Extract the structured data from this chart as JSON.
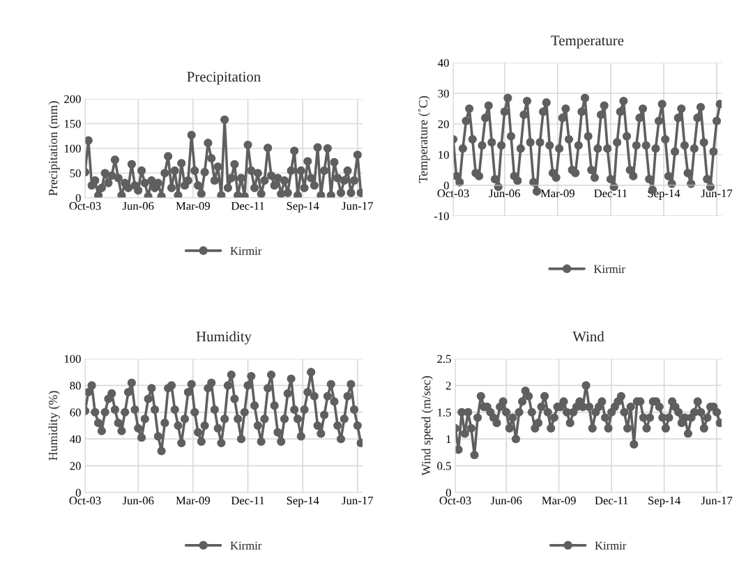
{
  "chart_data": [
    {
      "type": "line",
      "title": "Precipitation",
      "ylabel": "Precipitation (mm)",
      "grid": true,
      "legend": "bottom",
      "marker": "circle",
      "line_style": "solid",
      "x": [
        "2003-10",
        "2003-12",
        "2004-02",
        "2004-04",
        "2004-06",
        "2004-08",
        "2004-10",
        "2004-12",
        "2005-02",
        "2005-04",
        "2005-06",
        "2005-08",
        "2005-10",
        "2005-12",
        "2006-02",
        "2006-04",
        "2006-06",
        "2006-08",
        "2006-10",
        "2006-12",
        "2007-02",
        "2007-04",
        "2007-06",
        "2007-08",
        "2007-10",
        "2007-12",
        "2008-02",
        "2008-04",
        "2008-06",
        "2008-08",
        "2008-10",
        "2008-12",
        "2009-02",
        "2009-04",
        "2009-06",
        "2009-08",
        "2009-10",
        "2009-12",
        "2010-02",
        "2010-04",
        "2010-06",
        "2010-08",
        "2010-10",
        "2010-12",
        "2011-02",
        "2011-04",
        "2011-06",
        "2011-08",
        "2011-10",
        "2011-12",
        "2012-02",
        "2012-04",
        "2012-06",
        "2012-08",
        "2012-10",
        "2012-12",
        "2013-02",
        "2013-04",
        "2013-06",
        "2013-08",
        "2013-10",
        "2013-12",
        "2014-02",
        "2014-04",
        "2014-06",
        "2014-08",
        "2014-10",
        "2014-12",
        "2015-02",
        "2015-04",
        "2015-06",
        "2015-08",
        "2015-10",
        "2015-12",
        "2016-02",
        "2016-04",
        "2016-06",
        "2016-08",
        "2016-10",
        "2016-12",
        "2017-02",
        "2017-04",
        "2017-06",
        "2017-08"
      ],
      "xlim": [
        "2003-10",
        "2017-09"
      ],
      "xticks": [
        {
          "value": "2003-10",
          "label": "Oct-03"
        },
        {
          "value": "2006-06",
          "label": "Jun-06"
        },
        {
          "value": "2009-03",
          "label": "Mar-09"
        },
        {
          "value": "2011-12",
          "label": "Dec-11"
        },
        {
          "value": "2014-09",
          "label": "Sep-14"
        },
        {
          "value": "2017-06",
          "label": "Jun-17"
        }
      ],
      "ylim": [
        0,
        200
      ],
      "yticks": [
        0,
        50,
        100,
        150,
        200
      ],
      "series": [
        {
          "name": "Kirmir",
          "color": "#5f5f5f",
          "values": [
            52,
            116,
            25,
            35,
            5,
            20,
            50,
            30,
            45,
            77,
            40,
            5,
            30,
            20,
            68,
            25,
            15,
            55,
            30,
            3,
            35,
            20,
            30,
            3,
            50,
            84,
            20,
            55,
            5,
            70,
            25,
            35,
            127,
            55,
            25,
            8,
            52,
            111,
            80,
            35,
            63,
            5,
            158,
            20,
            40,
            68,
            5,
            40,
            3,
            107,
            55,
            20,
            50,
            8,
            35,
            101,
            45,
            25,
            40,
            8,
            35,
            10,
            55,
            95,
            5,
            55,
            20,
            74,
            40,
            25,
            102,
            5,
            55,
            100,
            5,
            72,
            40,
            10,
            35,
            55,
            10,
            35,
            87,
            10
          ]
        }
      ]
    },
    {
      "type": "line",
      "title": "Temperature",
      "ylabel": "Temperature (˚C)",
      "grid": true,
      "legend": "bottom",
      "marker": "circle",
      "line_style": "solid",
      "x": [
        "2003-10",
        "2003-12",
        "2004-02",
        "2004-04",
        "2004-06",
        "2004-08",
        "2004-10",
        "2004-12",
        "2005-02",
        "2005-04",
        "2005-06",
        "2005-08",
        "2005-10",
        "2005-12",
        "2006-02",
        "2006-04",
        "2006-06",
        "2006-08",
        "2006-10",
        "2006-12",
        "2007-02",
        "2007-04",
        "2007-06",
        "2007-08",
        "2007-10",
        "2007-12",
        "2008-02",
        "2008-04",
        "2008-06",
        "2008-08",
        "2008-10",
        "2008-12",
        "2009-02",
        "2009-04",
        "2009-06",
        "2009-08",
        "2009-10",
        "2009-12",
        "2010-02",
        "2010-04",
        "2010-06",
        "2010-08",
        "2010-10",
        "2010-12",
        "2011-02",
        "2011-04",
        "2011-06",
        "2011-08",
        "2011-10",
        "2011-12",
        "2012-02",
        "2012-04",
        "2012-06",
        "2012-08",
        "2012-10",
        "2012-12",
        "2013-02",
        "2013-04",
        "2013-06",
        "2013-08",
        "2013-10",
        "2013-12",
        "2014-02",
        "2014-04",
        "2014-06",
        "2014-08",
        "2014-10",
        "2014-12",
        "2015-02",
        "2015-04",
        "2015-06",
        "2015-08",
        "2015-10",
        "2015-12",
        "2016-02",
        "2016-04",
        "2016-06",
        "2016-08",
        "2016-10",
        "2016-12",
        "2017-02",
        "2017-04",
        "2017-06",
        "2017-08"
      ],
      "xlim": [
        "2003-10",
        "2017-09"
      ],
      "xticks": [
        {
          "value": "2003-10",
          "label": "Oct-03"
        },
        {
          "value": "2006-06",
          "label": "Jun-06"
        },
        {
          "value": "2009-03",
          "label": "Mar-09"
        },
        {
          "value": "2011-12",
          "label": "Dec-11"
        },
        {
          "value": "2014-09",
          "label": "Sep-14"
        },
        {
          "value": "2017-06",
          "label": "Jun-17"
        }
      ],
      "ylim": [
        -10,
        40
      ],
      "yticks": [
        -10,
        0,
        10,
        20,
        30,
        40
      ],
      "series": [
        {
          "name": "Kirmir",
          "color": "#5f5f5f",
          "values": [
            15,
            3,
            1,
            12,
            21,
            25,
            15,
            4,
            3,
            13,
            22,
            26,
            14,
            2,
            -0.5,
            13,
            24,
            28.5,
            16,
            3,
            1.5,
            12,
            23,
            27.5,
            14,
            1,
            -2,
            14,
            24,
            27,
            13,
            4,
            2.5,
            12,
            22,
            25,
            15,
            5,
            4,
            13,
            24,
            28.5,
            16,
            5,
            2.5,
            12,
            23,
            26,
            12,
            2,
            -0.5,
            14,
            24,
            27.5,
            16,
            5,
            3,
            13,
            22,
            25,
            13,
            2,
            -1.5,
            12,
            21,
            26.5,
            15,
            3,
            0.5,
            11,
            22,
            25,
            13,
            4,
            0.5,
            12,
            22,
            25.5,
            14,
            2,
            -0.5,
            11,
            21,
            26.5
          ]
        }
      ]
    },
    {
      "type": "line",
      "title": "Humidity",
      "ylabel": "Humidity (%)",
      "grid": true,
      "legend": "bottom",
      "marker": "circle",
      "line_style": "solid",
      "x": [
        "2003-10",
        "2003-12",
        "2004-02",
        "2004-04",
        "2004-06",
        "2004-08",
        "2004-10",
        "2004-12",
        "2005-02",
        "2005-04",
        "2005-06",
        "2005-08",
        "2005-10",
        "2005-12",
        "2006-02",
        "2006-04",
        "2006-06",
        "2006-08",
        "2006-10",
        "2006-12",
        "2007-02",
        "2007-04",
        "2007-06",
        "2007-08",
        "2007-10",
        "2007-12",
        "2008-02",
        "2008-04",
        "2008-06",
        "2008-08",
        "2008-10",
        "2008-12",
        "2009-02",
        "2009-04",
        "2009-06",
        "2009-08",
        "2009-10",
        "2009-12",
        "2010-02",
        "2010-04",
        "2010-06",
        "2010-08",
        "2010-10",
        "2010-12",
        "2011-02",
        "2011-04",
        "2011-06",
        "2011-08",
        "2011-10",
        "2011-12",
        "2012-02",
        "2012-04",
        "2012-06",
        "2012-08",
        "2012-10",
        "2012-12",
        "2013-02",
        "2013-04",
        "2013-06",
        "2013-08",
        "2013-10",
        "2013-12",
        "2014-02",
        "2014-04",
        "2014-06",
        "2014-08",
        "2014-10",
        "2014-12",
        "2015-02",
        "2015-04",
        "2015-06",
        "2015-08",
        "2015-10",
        "2015-12",
        "2016-02",
        "2016-04",
        "2016-06",
        "2016-08",
        "2016-10",
        "2016-12",
        "2017-02",
        "2017-04",
        "2017-06",
        "2017-08"
      ],
      "xlim": [
        "2003-10",
        "2017-09"
      ],
      "xticks": [
        {
          "value": "2003-10",
          "label": "Oct-03"
        },
        {
          "value": "2006-06",
          "label": "Jun-06"
        },
        {
          "value": "2009-03",
          "label": "Mar-09"
        },
        {
          "value": "2011-12",
          "label": "Dec-11"
        },
        {
          "value": "2014-09",
          "label": "Sep-14"
        },
        {
          "value": "2017-06",
          "label": "Jun-17"
        }
      ],
      "ylim": [
        0,
        100
      ],
      "yticks": [
        0,
        20,
        40,
        60,
        80,
        100
      ],
      "series": [
        {
          "name": "Kirmir",
          "color": "#5f5f5f",
          "values": [
            61,
            75,
            80,
            60,
            52,
            46,
            60,
            70,
            74,
            62,
            52,
            46,
            60,
            75,
            82,
            62,
            48,
            41,
            55,
            70,
            78,
            62,
            42,
            31,
            52,
            78,
            80,
            62,
            50,
            37,
            55,
            75,
            81,
            60,
            45,
            38,
            50,
            78,
            82,
            62,
            48,
            37,
            55,
            80,
            88,
            70,
            55,
            40,
            60,
            80,
            87,
            65,
            50,
            38,
            55,
            78,
            88,
            65,
            45,
            38,
            55,
            74,
            85,
            62,
            55,
            42,
            62,
            75,
            90,
            72,
            50,
            44,
            58,
            72,
            81,
            68,
            50,
            40,
            55,
            72,
            81,
            62,
            50,
            37
          ]
        }
      ]
    },
    {
      "type": "line",
      "title": "Wind",
      "ylabel": "Wind speed (m/sec)",
      "grid": true,
      "legend": "bottom",
      "marker": "circle",
      "line_style": "solid",
      "x": [
        "2003-10",
        "2003-12",
        "2004-02",
        "2004-04",
        "2004-06",
        "2004-08",
        "2004-10",
        "2004-12",
        "2005-02",
        "2005-04",
        "2005-06",
        "2005-08",
        "2005-10",
        "2005-12",
        "2006-02",
        "2006-04",
        "2006-06",
        "2006-08",
        "2006-10",
        "2006-12",
        "2007-02",
        "2007-04",
        "2007-06",
        "2007-08",
        "2007-10",
        "2007-12",
        "2008-02",
        "2008-04",
        "2008-06",
        "2008-08",
        "2008-10",
        "2008-12",
        "2009-02",
        "2009-04",
        "2009-06",
        "2009-08",
        "2009-10",
        "2009-12",
        "2010-02",
        "2010-04",
        "2010-06",
        "2010-08",
        "2010-10",
        "2010-12",
        "2011-02",
        "2011-04",
        "2011-06",
        "2011-08",
        "2011-10",
        "2011-12",
        "2012-02",
        "2012-04",
        "2012-06",
        "2012-08",
        "2012-10",
        "2012-12",
        "2013-02",
        "2013-04",
        "2013-06",
        "2013-08",
        "2013-10",
        "2013-12",
        "2014-02",
        "2014-04",
        "2014-06",
        "2014-08",
        "2014-10",
        "2014-12",
        "2015-02",
        "2015-04",
        "2015-06",
        "2015-08",
        "2015-10",
        "2015-12",
        "2016-02",
        "2016-04",
        "2016-06",
        "2016-08",
        "2016-10",
        "2016-12",
        "2017-02",
        "2017-04",
        "2017-06",
        "2017-08"
      ],
      "xlim": [
        "2003-10",
        "2017-09"
      ],
      "xticks": [
        {
          "value": "2003-10",
          "label": "Oct-03"
        },
        {
          "value": "2006-06",
          "label": "Jun-06"
        },
        {
          "value": "2009-03",
          "label": "Mar-09"
        },
        {
          "value": "2011-12",
          "label": "Dec-11"
        },
        {
          "value": "2014-09",
          "label": "Sep-14"
        },
        {
          "value": "2017-06",
          "label": "Jun-17"
        }
      ],
      "ylim": [
        0,
        2.5
      ],
      "yticks": [
        0,
        0.5,
        1,
        1.5,
        2,
        2.5
      ],
      "series": [
        {
          "name": "Kirmir",
          "color": "#5f5f5f",
          "values": [
            1.2,
            0.8,
            1.5,
            1.1,
            1.5,
            1.2,
            0.7,
            1.4,
            1.8,
            1.6,
            1.6,
            1.5,
            1.4,
            1.3,
            1.6,
            1.7,
            1.5,
            1.2,
            1.4,
            1.0,
            1.5,
            1.7,
            1.9,
            1.8,
            1.5,
            1.2,
            1.3,
            1.6,
            1.8,
            1.5,
            1.2,
            1.4,
            1.6,
            1.6,
            1.7,
            1.5,
            1.3,
            1.5,
            1.6,
            1.7,
            1.6,
            2.0,
            1.6,
            1.2,
            1.5,
            1.6,
            1.7,
            1.4,
            1.2,
            1.5,
            1.6,
            1.7,
            1.8,
            1.5,
            1.2,
            1.6,
            0.9,
            1.7,
            1.7,
            1.4,
            1.2,
            1.4,
            1.7,
            1.7,
            1.6,
            1.4,
            1.2,
            1.4,
            1.7,
            1.6,
            1.5,
            1.3,
            1.4,
            1.1,
            1.4,
            1.5,
            1.7,
            1.5,
            1.2,
            1.4,
            1.6,
            1.6,
            1.5,
            1.3
          ]
        }
      ]
    }
  ]
}
